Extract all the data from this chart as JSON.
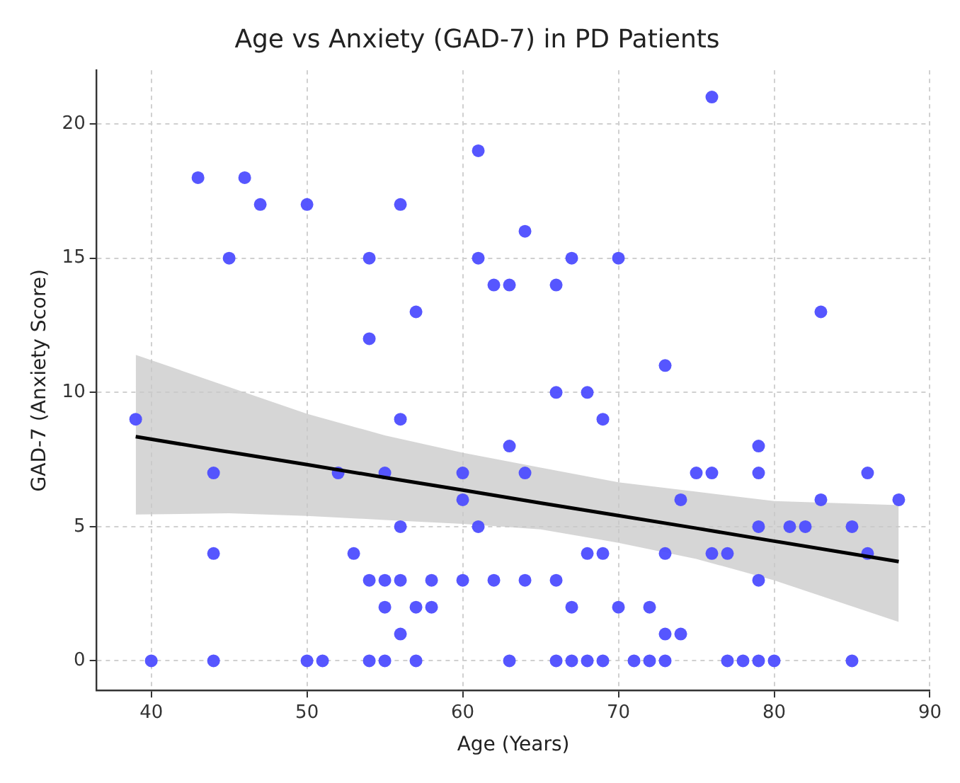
{
  "chart_data": {
    "type": "scatter",
    "title": "Age vs Anxiety (GAD-7) in PD Patients",
    "xlabel": "Age (Years)",
    "ylabel": "GAD-7 (Anxiety Score)",
    "xlim": [
      36.5,
      90
    ],
    "xticks": [
      40,
      50,
      60,
      70,
      80,
      90
    ],
    "ylim": [
      -1.1,
      22
    ],
    "yticks": [
      0,
      5,
      10,
      15,
      20
    ],
    "grid": true,
    "legend": false,
    "series": [
      {
        "marker": "circle",
        "color": "#4d4dff",
        "x": [
          76,
          61,
          43,
          46,
          47,
          50,
          56,
          64,
          45,
          54,
          61,
          67,
          70,
          62,
          63,
          66,
          57,
          83,
          54,
          73,
          66,
          68,
          39,
          56,
          69,
          63,
          79,
          44,
          52,
          55,
          60,
          64,
          75,
          76,
          79,
          86,
          60,
          74,
          83,
          88,
          56,
          61,
          79,
          81,
          82,
          85,
          44,
          53,
          68,
          69,
          73,
          76,
          77,
          86,
          54,
          55,
          56,
          58,
          60,
          62,
          64,
          66,
          79,
          55,
          57,
          58,
          67,
          70,
          72,
          56,
          73,
          74,
          40,
          44,
          50,
          51,
          54,
          55,
          57,
          63,
          66,
          67,
          68,
          69,
          71,
          72,
          73,
          77,
          78,
          79,
          80,
          85
        ],
        "values": [
          21,
          19,
          18,
          18,
          17,
          17,
          17,
          16,
          15,
          15,
          15,
          15,
          15,
          14,
          14,
          14,
          13,
          13,
          12,
          11,
          10,
          10,
          9,
          9,
          9,
          8,
          8,
          7,
          7,
          7,
          7,
          7,
          7,
          7,
          7,
          7,
          6,
          6,
          6,
          6,
          5,
          5,
          5,
          5,
          5,
          5,
          4,
          4,
          4,
          4,
          4,
          4,
          4,
          4,
          3,
          3,
          3,
          3,
          3,
          3,
          3,
          3,
          3,
          2,
          2,
          2,
          2,
          2,
          2,
          1,
          1,
          1,
          0,
          0,
          0,
          0,
          0,
          0,
          0,
          0,
          0,
          0,
          0,
          0,
          0,
          0,
          0,
          0,
          0,
          0,
          0,
          0
        ]
      },
      {
        "type": "line",
        "marker": "none",
        "color": "#000000",
        "x": [
          39,
          45,
          50,
          55,
          60,
          65,
          70,
          75,
          80,
          88
        ],
        "values": [
          8.35,
          7.78,
          7.31,
          6.83,
          6.36,
          5.88,
          5.41,
          4.94,
          4.46,
          3.7
        ],
        "lower": [
          5.45,
          5.5,
          5.4,
          5.25,
          5.1,
          4.9,
          4.4,
          3.8,
          3.0,
          1.45
        ],
        "upper": [
          11.4,
          10.2,
          9.2,
          8.4,
          7.75,
          7.2,
          6.65,
          6.3,
          5.95,
          5.8
        ]
      }
    ]
  }
}
